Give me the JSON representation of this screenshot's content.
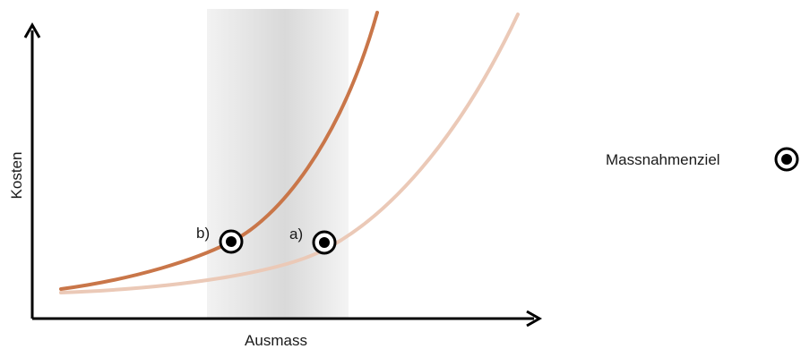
{
  "diagram": {
    "x_axis_label": "Ausmass",
    "y_axis_label": "Kosten",
    "curves": [
      {
        "name": "b",
        "color": "#c97649"
      },
      {
        "name": "a",
        "color": "#ebc9b7"
      }
    ],
    "points": [
      {
        "label": "b)"
      },
      {
        "label": "a)"
      }
    ],
    "band_color": "#e4e4e4",
    "axis_color": "#000000",
    "legend": {
      "label": "Massnahmenziel",
      "icon": "target-circle-icon"
    }
  }
}
